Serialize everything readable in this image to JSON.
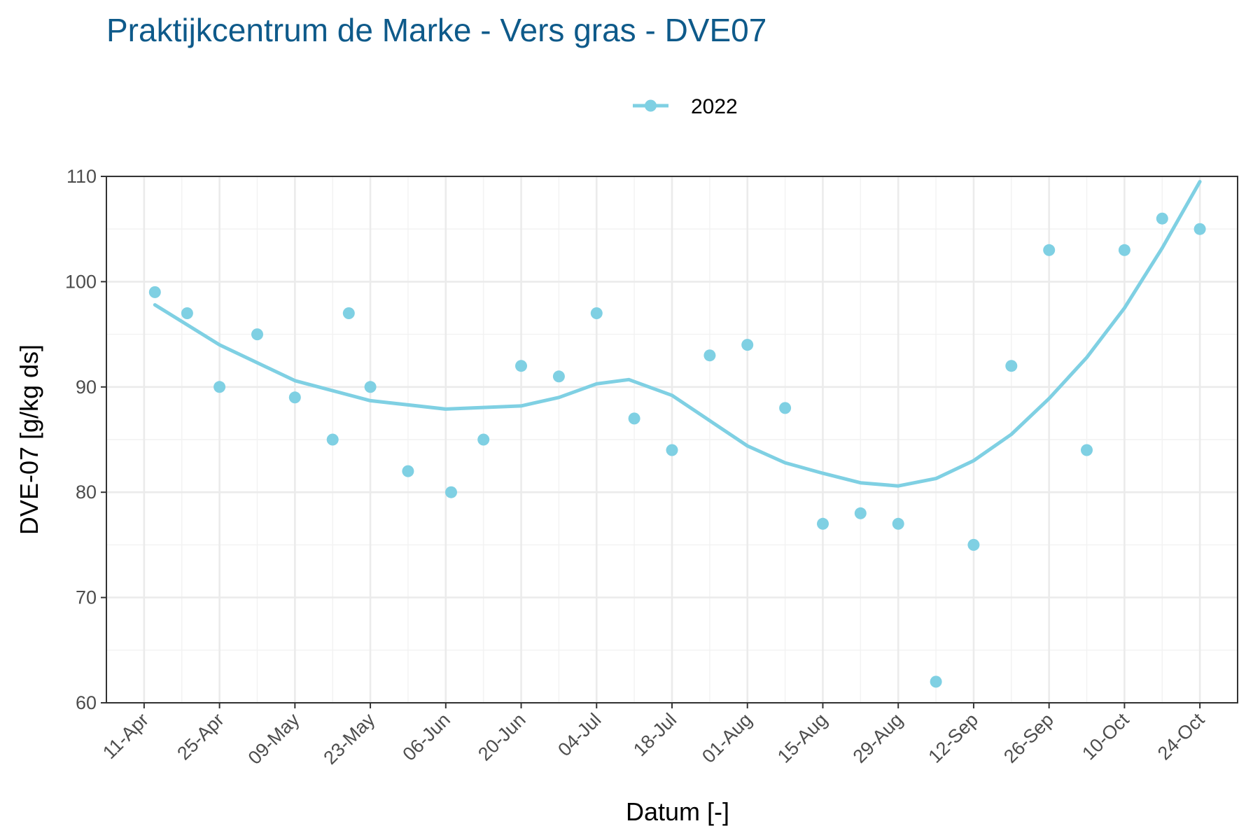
{
  "chart_data": {
    "type": "scatter",
    "title": "Praktijkcentrum de Marke - Vers gras - DVE07",
    "xlabel": "Datum [-]",
    "ylabel": "DVE-07 [g/kg ds]",
    "ylim": [
      60,
      110
    ],
    "yticks": [
      60,
      70,
      80,
      90,
      100,
      110
    ],
    "xlim": [
      "2022-04-04",
      "2022-10-31"
    ],
    "xticks": [
      "2022-04-11",
      "2022-04-25",
      "2022-05-09",
      "2022-05-23",
      "2022-06-06",
      "2022-06-20",
      "2022-07-04",
      "2022-07-18",
      "2022-08-01",
      "2022-08-15",
      "2022-08-29",
      "2022-09-12",
      "2022-09-26",
      "2022-10-10",
      "2022-10-24"
    ],
    "xtick_labels": [
      "11-Apr",
      "25-Apr",
      "09-May",
      "23-May",
      "06-Jun",
      "20-Jun",
      "04-Jul",
      "18-Jul",
      "01-Aug",
      "15-Aug",
      "29-Aug",
      "12-Sep",
      "26-Sep",
      "10-Oct",
      "24-Oct"
    ],
    "grid": true,
    "legend_position": "top",
    "series": [
      {
        "name": "2022",
        "color": "#7fd0e3",
        "points": [
          {
            "x": "2022-04-13",
            "y": 99
          },
          {
            "x": "2022-04-19",
            "y": 97
          },
          {
            "x": "2022-04-25",
            "y": 90
          },
          {
            "x": "2022-05-02",
            "y": 95
          },
          {
            "x": "2022-05-09",
            "y": 89
          },
          {
            "x": "2022-05-16",
            "y": 85
          },
          {
            "x": "2022-05-19",
            "y": 97
          },
          {
            "x": "2022-05-23",
            "y": 90
          },
          {
            "x": "2022-05-30",
            "y": 82
          },
          {
            "x": "2022-06-07",
            "y": 80
          },
          {
            "x": "2022-06-13",
            "y": 85
          },
          {
            "x": "2022-06-20",
            "y": 92
          },
          {
            "x": "2022-06-27",
            "y": 91
          },
          {
            "x": "2022-07-04",
            "y": 97
          },
          {
            "x": "2022-07-11",
            "y": 87
          },
          {
            "x": "2022-07-18",
            "y": 84
          },
          {
            "x": "2022-07-25",
            "y": 93
          },
          {
            "x": "2022-08-01",
            "y": 94
          },
          {
            "x": "2022-08-08",
            "y": 88
          },
          {
            "x": "2022-08-15",
            "y": 77
          },
          {
            "x": "2022-08-22",
            "y": 78
          },
          {
            "x": "2022-08-29",
            "y": 77
          },
          {
            "x": "2022-09-05",
            "y": 62
          },
          {
            "x": "2022-09-12",
            "y": 75
          },
          {
            "x": "2022-09-19",
            "y": 92
          },
          {
            "x": "2022-09-26",
            "y": 103
          },
          {
            "x": "2022-10-03",
            "y": 84
          },
          {
            "x": "2022-10-10",
            "y": 103
          },
          {
            "x": "2022-10-17",
            "y": 106
          },
          {
            "x": "2022-10-24",
            "y": 105
          }
        ],
        "trend": [
          {
            "x": "2022-04-13",
            "y": 97.8
          },
          {
            "x": "2022-04-25",
            "y": 94.0
          },
          {
            "x": "2022-05-09",
            "y": 90.6
          },
          {
            "x": "2022-05-23",
            "y": 88.7
          },
          {
            "x": "2022-06-06",
            "y": 87.9
          },
          {
            "x": "2022-06-20",
            "y": 88.2
          },
          {
            "x": "2022-06-27",
            "y": 89.0
          },
          {
            "x": "2022-07-04",
            "y": 90.3
          },
          {
            "x": "2022-07-10",
            "y": 90.7
          },
          {
            "x": "2022-07-18",
            "y": 89.2
          },
          {
            "x": "2022-08-01",
            "y": 84.4
          },
          {
            "x": "2022-08-08",
            "y": 82.8
          },
          {
            "x": "2022-08-15",
            "y": 81.8
          },
          {
            "x": "2022-08-22",
            "y": 80.9
          },
          {
            "x": "2022-08-29",
            "y": 80.6
          },
          {
            "x": "2022-09-05",
            "y": 81.3
          },
          {
            "x": "2022-09-12",
            "y": 83.0
          },
          {
            "x": "2022-09-19",
            "y": 85.5
          },
          {
            "x": "2022-09-26",
            "y": 88.9
          },
          {
            "x": "2022-10-03",
            "y": 92.8
          },
          {
            "x": "2022-10-10",
            "y": 97.5
          },
          {
            "x": "2022-10-17",
            "y": 103.2
          },
          {
            "x": "2022-10-24",
            "y": 109.5
          }
        ]
      }
    ]
  }
}
